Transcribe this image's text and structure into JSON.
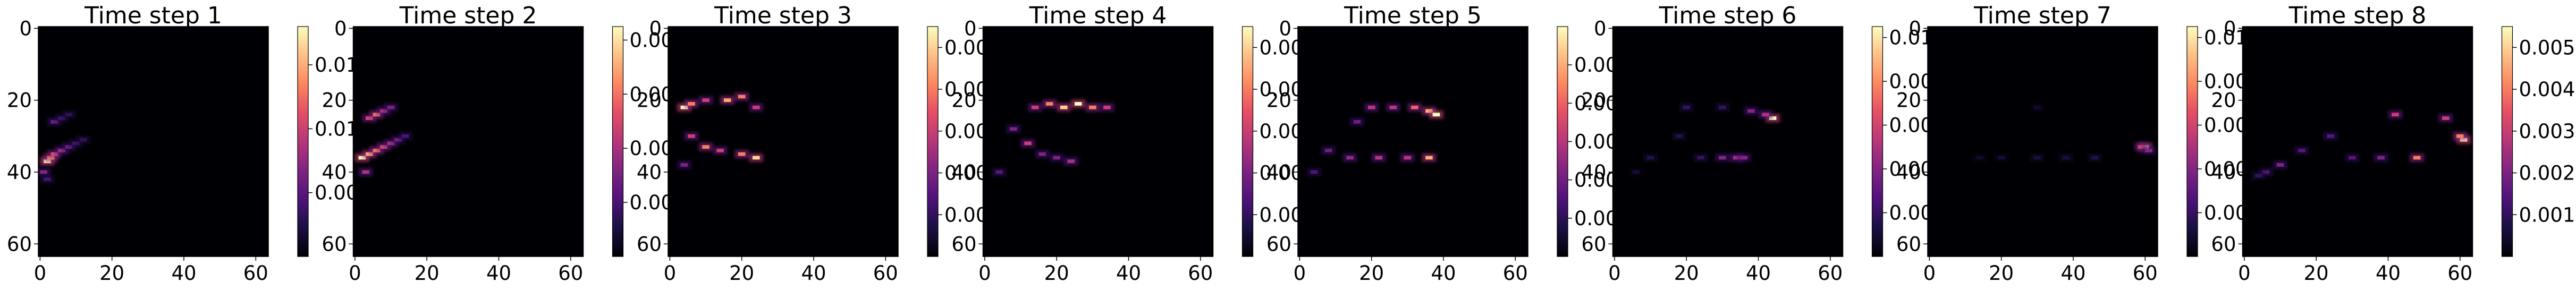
{
  "chart_data": [
    {
      "type": "heatmap",
      "title": "Time step 1",
      "xticks": [
        0,
        20,
        40,
        60
      ],
      "yticks": [
        0,
        20,
        40,
        60
      ],
      "xlim": [
        0,
        63
      ],
      "ylim": [
        63,
        0
      ],
      "colormap": "magma",
      "colorbar_ticks": [
        "0.005",
        "0.010",
        "0.015"
      ],
      "colorbar_tick_values": [
        0.005,
        0.01,
        0.015
      ],
      "colorbar_range": [
        0,
        0.018
      ],
      "hotspots": [
        {
          "x": 2,
          "y": 37,
          "v": 0.018
        },
        {
          "x": 3,
          "y": 36,
          "v": 0.014
        },
        {
          "x": 4,
          "y": 35,
          "v": 0.011
        },
        {
          "x": 6,
          "y": 34,
          "v": 0.008
        },
        {
          "x": 8,
          "y": 33,
          "v": 0.006
        },
        {
          "x": 10,
          "y": 32,
          "v": 0.004
        },
        {
          "x": 12,
          "y": 31,
          "v": 0.003
        },
        {
          "x": 4,
          "y": 26,
          "v": 0.006
        },
        {
          "x": 6,
          "y": 25,
          "v": 0.004
        },
        {
          "x": 8,
          "y": 24,
          "v": 0.003
        },
        {
          "x": 1,
          "y": 40,
          "v": 0.007
        },
        {
          "x": 2,
          "y": 42,
          "v": 0.004
        }
      ]
    },
    {
      "type": "heatmap",
      "title": "Time step 2",
      "xticks": [
        0,
        20,
        40,
        60
      ],
      "yticks": [
        0,
        20,
        40,
        60
      ],
      "xlim": [
        0,
        63
      ],
      "ylim": [
        63,
        0
      ],
      "colormap": "magma",
      "colorbar_ticks": [
        "0.002",
        "0.004",
        "0.006",
        "0.008"
      ],
      "colorbar_tick_values": [
        0.002,
        0.004,
        0.006,
        0.008
      ],
      "colorbar_range": [
        0,
        0.0085
      ],
      "hotspots": [
        {
          "x": 2,
          "y": 36,
          "v": 0.0085
        },
        {
          "x": 4,
          "y": 35,
          "v": 0.007
        },
        {
          "x": 6,
          "y": 34,
          "v": 0.006
        },
        {
          "x": 8,
          "y": 33,
          "v": 0.005
        },
        {
          "x": 10,
          "y": 32,
          "v": 0.004
        },
        {
          "x": 12,
          "y": 31,
          "v": 0.003
        },
        {
          "x": 14,
          "y": 30,
          "v": 0.002
        },
        {
          "x": 4,
          "y": 25,
          "v": 0.005
        },
        {
          "x": 6,
          "y": 24,
          "v": 0.006
        },
        {
          "x": 8,
          "y": 23,
          "v": 0.004
        },
        {
          "x": 10,
          "y": 22,
          "v": 0.003
        },
        {
          "x": 3,
          "y": 40,
          "v": 0.004
        }
      ]
    },
    {
      "type": "heatmap",
      "title": "Time step 3",
      "xticks": [
        0,
        20,
        40,
        60
      ],
      "yticks": [
        0,
        20,
        40,
        60
      ],
      "xlim": [
        0,
        63
      ],
      "ylim": [
        63,
        0
      ],
      "colormap": "magma",
      "colorbar_ticks": [
        "0.001",
        "0.002",
        "0.003",
        "0.004",
        "0.005"
      ],
      "colorbar_tick_values": [
        0.001,
        0.002,
        0.003,
        0.004,
        0.005
      ],
      "colorbar_range": [
        0,
        0.0055
      ],
      "hotspots": [
        {
          "x": 4,
          "y": 22,
          "v": 0.0055
        },
        {
          "x": 6,
          "y": 21,
          "v": 0.004
        },
        {
          "x": 10,
          "y": 20,
          "v": 0.003
        },
        {
          "x": 16,
          "y": 20,
          "v": 0.0045
        },
        {
          "x": 20,
          "y": 19,
          "v": 0.004
        },
        {
          "x": 24,
          "y": 22,
          "v": 0.003
        },
        {
          "x": 6,
          "y": 30,
          "v": 0.003
        },
        {
          "x": 10,
          "y": 33,
          "v": 0.004
        },
        {
          "x": 14,
          "y": 34,
          "v": 0.003
        },
        {
          "x": 20,
          "y": 35,
          "v": 0.004
        },
        {
          "x": 24,
          "y": 36,
          "v": 0.005
        },
        {
          "x": 4,
          "y": 38,
          "v": 0.002
        }
      ]
    },
    {
      "type": "heatmap",
      "title": "Time step 4",
      "xticks": [
        0,
        20,
        40,
        60
      ],
      "yticks": [
        0,
        20,
        40,
        60
      ],
      "xlim": [
        0,
        63
      ],
      "ylim": [
        63,
        0
      ],
      "colormap": "magma",
      "colorbar_ticks": [
        "0.001",
        "0.002",
        "0.003",
        "0.004",
        "0.005"
      ],
      "colorbar_tick_values": [
        0.001,
        0.002,
        0.003,
        0.004,
        0.005
      ],
      "colorbar_range": [
        0,
        0.0055
      ],
      "hotspots": [
        {
          "x": 14,
          "y": 22,
          "v": 0.003
        },
        {
          "x": 18,
          "y": 21,
          "v": 0.004
        },
        {
          "x": 22,
          "y": 22,
          "v": 0.005
        },
        {
          "x": 26,
          "y": 21,
          "v": 0.0055
        },
        {
          "x": 30,
          "y": 22,
          "v": 0.004
        },
        {
          "x": 34,
          "y": 22,
          "v": 0.003
        },
        {
          "x": 8,
          "y": 28,
          "v": 0.002
        },
        {
          "x": 12,
          "y": 32,
          "v": 0.003
        },
        {
          "x": 16,
          "y": 35,
          "v": 0.002
        },
        {
          "x": 20,
          "y": 36,
          "v": 0.002
        },
        {
          "x": 24,
          "y": 37,
          "v": 0.0025
        },
        {
          "x": 4,
          "y": 40,
          "v": 0.0015
        }
      ]
    },
    {
      "type": "heatmap",
      "title": "Time step 5",
      "xticks": [
        0,
        20,
        40,
        60
      ],
      "yticks": [
        0,
        20,
        40,
        60
      ],
      "xlim": [
        0,
        63
      ],
      "ylim": [
        63,
        0
      ],
      "colormap": "magma",
      "colorbar_ticks": [
        "0.001",
        "0.002",
        "0.003",
        "0.004",
        "0.005"
      ],
      "colorbar_tick_values": [
        0.001,
        0.002,
        0.003,
        0.004,
        0.005
      ],
      "colorbar_range": [
        0,
        0.006
      ],
      "hotspots": [
        {
          "x": 20,
          "y": 22,
          "v": 0.003
        },
        {
          "x": 26,
          "y": 22,
          "v": 0.003
        },
        {
          "x": 32,
          "y": 22,
          "v": 0.004
        },
        {
          "x": 36,
          "y": 23,
          "v": 0.005
        },
        {
          "x": 38,
          "y": 24,
          "v": 0.006
        },
        {
          "x": 16,
          "y": 26,
          "v": 0.002
        },
        {
          "x": 8,
          "y": 34,
          "v": 0.002
        },
        {
          "x": 14,
          "y": 36,
          "v": 0.0025
        },
        {
          "x": 22,
          "y": 36,
          "v": 0.003
        },
        {
          "x": 30,
          "y": 36,
          "v": 0.003
        },
        {
          "x": 36,
          "y": 36,
          "v": 0.005
        },
        {
          "x": 4,
          "y": 40,
          "v": 0.0015
        }
      ]
    },
    {
      "type": "heatmap",
      "title": "Time step 6",
      "xticks": [
        0,
        20,
        40,
        60
      ],
      "yticks": [
        0,
        20,
        40,
        60
      ],
      "xlim": [
        0,
        63
      ],
      "ylim": [
        63,
        0
      ],
      "colormap": "magma",
      "colorbar_ticks": [
        "0.002",
        "0.004",
        "0.006",
        "0.008",
        "0.010"
      ],
      "colorbar_tick_values": [
        0.002,
        0.004,
        0.006,
        0.008,
        0.01
      ],
      "colorbar_range": [
        0,
        0.0105
      ],
      "hotspots": [
        {
          "x": 20,
          "y": 22,
          "v": 0.002
        },
        {
          "x": 30,
          "y": 22,
          "v": 0.002
        },
        {
          "x": 38,
          "y": 23,
          "v": 0.004
        },
        {
          "x": 44,
          "y": 25,
          "v": 0.0105
        },
        {
          "x": 42,
          "y": 24,
          "v": 0.005
        },
        {
          "x": 30,
          "y": 36,
          "v": 0.004
        },
        {
          "x": 34,
          "y": 36,
          "v": 0.005
        },
        {
          "x": 36,
          "y": 36,
          "v": 0.004
        },
        {
          "x": 10,
          "y": 36,
          "v": 0.0015
        },
        {
          "x": 18,
          "y": 30,
          "v": 0.0015
        },
        {
          "x": 6,
          "y": 40,
          "v": 0.001
        },
        {
          "x": 24,
          "y": 36,
          "v": 0.002
        }
      ]
    },
    {
      "type": "heatmap",
      "title": "Time step 7",
      "xticks": [
        0,
        20,
        40,
        60
      ],
      "yticks": [
        0,
        20,
        40,
        60
      ],
      "xlim": [
        0,
        63
      ],
      "ylim": [
        63,
        0
      ],
      "colormap": "magma",
      "colorbar_ticks": [
        "0.002",
        "0.004",
        "0.006",
        "0.008",
        "0.010"
      ],
      "colorbar_tick_values": [
        0.002,
        0.004,
        0.006,
        0.008,
        0.01
      ],
      "colorbar_range": [
        0,
        0.0105
      ],
      "hotspots": [
        {
          "x": 60,
          "y": 33,
          "v": 0.0105
        },
        {
          "x": 59,
          "y": 33,
          "v": 0.006
        },
        {
          "x": 61,
          "y": 34,
          "v": 0.004
        },
        {
          "x": 30,
          "y": 36,
          "v": 0.0012
        },
        {
          "x": 38,
          "y": 36,
          "v": 0.0012
        },
        {
          "x": 46,
          "y": 36,
          "v": 0.0015
        },
        {
          "x": 20,
          "y": 36,
          "v": 0.001
        },
        {
          "x": 14,
          "y": 36,
          "v": 0.0008
        },
        {
          "x": 30,
          "y": 22,
          "v": 0.0008
        }
      ]
    },
    {
      "type": "heatmap",
      "title": "Time step 8",
      "xticks": [
        0,
        20,
        40,
        60
      ],
      "yticks": [
        0,
        20,
        40,
        60
      ],
      "xlim": [
        0,
        63
      ],
      "ylim": [
        63,
        0
      ],
      "colormap": "magma",
      "colorbar_ticks": [
        "0.001",
        "0.002",
        "0.003",
        "0.004",
        "0.005"
      ],
      "colorbar_tick_values": [
        0.001,
        0.002,
        0.003,
        0.004,
        0.005
      ],
      "colorbar_range": [
        0,
        0.0055
      ],
      "hotspots": [
        {
          "x": 42,
          "y": 24,
          "v": 0.003
        },
        {
          "x": 56,
          "y": 25,
          "v": 0.003
        },
        {
          "x": 61,
          "y": 31,
          "v": 0.0055
        },
        {
          "x": 60,
          "y": 30,
          "v": 0.004
        },
        {
          "x": 48,
          "y": 36,
          "v": 0.004
        },
        {
          "x": 38,
          "y": 36,
          "v": 0.002
        },
        {
          "x": 30,
          "y": 36,
          "v": 0.0015
        },
        {
          "x": 24,
          "y": 30,
          "v": 0.0015
        },
        {
          "x": 16,
          "y": 34,
          "v": 0.0015
        },
        {
          "x": 10,
          "y": 38,
          "v": 0.002
        },
        {
          "x": 6,
          "y": 40,
          "v": 0.0015
        },
        {
          "x": 4,
          "y": 41,
          "v": 0.001
        }
      ]
    }
  ]
}
